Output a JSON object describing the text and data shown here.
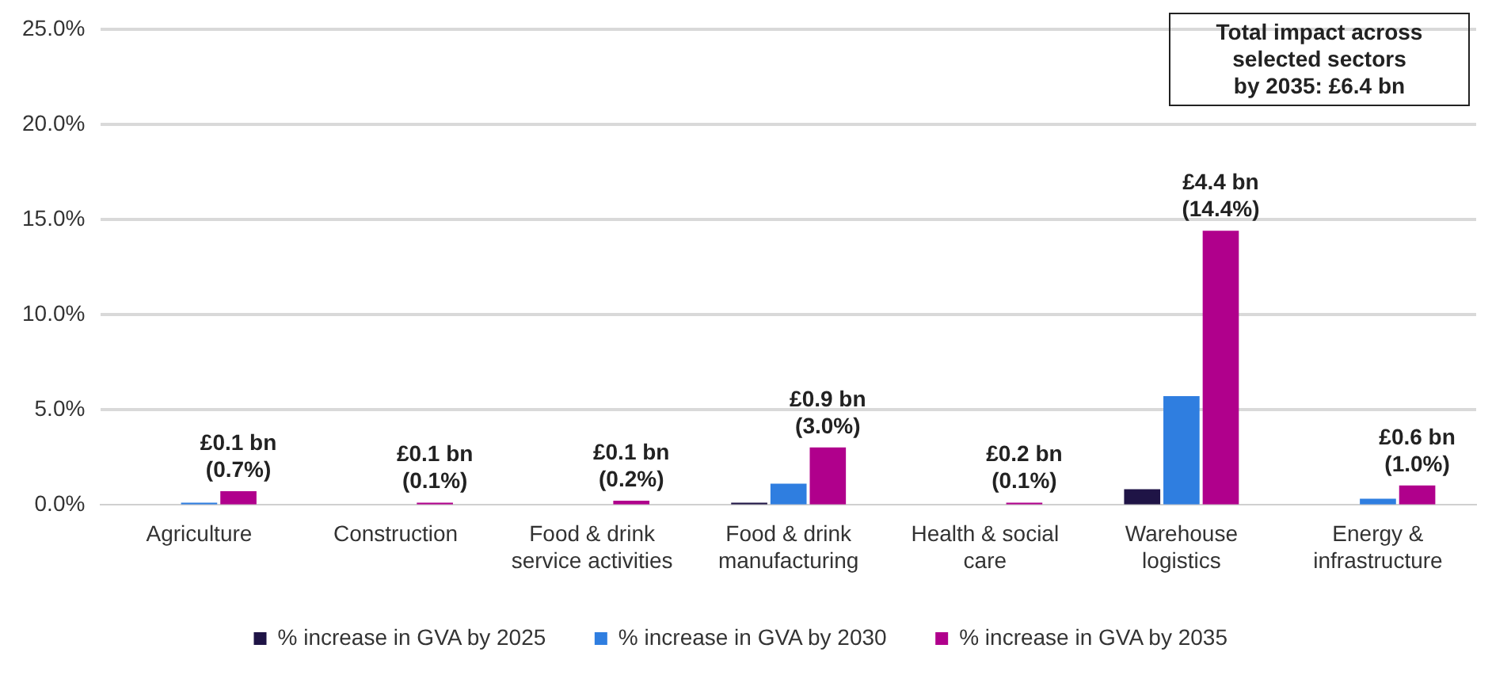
{
  "chart_data": {
    "type": "bar",
    "categories": [
      "Agriculture",
      "Construction",
      "Food & drink service activities",
      "Food & drink manufacturing",
      "Health & social care",
      "Warehouse logistics",
      "Energy & infrastructure"
    ],
    "series": [
      {
        "name": "% increase in GVA by 2025",
        "color": "#1f1446",
        "values": [
          0,
          0,
          0,
          0.1,
          0,
          0.8,
          0
        ]
      },
      {
        "name": "% increase in GVA by 2030",
        "color": "#2f7ee0",
        "values": [
          0.1,
          0,
          0,
          1.1,
          0,
          5.7,
          0.3
        ]
      },
      {
        "name": "% increase in GVA by 2035",
        "color": "#b0008c",
        "values": [
          0.7,
          0.1,
          0.2,
          3.0,
          0.1,
          14.4,
          1.0
        ],
        "value_labels": [
          "£0.1 bn\n(0.7%)",
          "£0.1 bn\n(0.1%)",
          "£0.1 bn\n(0.2%)",
          "£0.9 bn\n(3.0%)",
          "£0.2 bn\n(0.1%)",
          "£4.4 bn\n(14.4%)",
          "£0.6 bn\n(1.0%)"
        ]
      }
    ],
    "ylim": [
      0,
      25
    ],
    "yticks": [
      {
        "value": 0,
        "label": "0.0%"
      },
      {
        "value": 5,
        "label": "5.0%"
      },
      {
        "value": 10,
        "label": "10.0%"
      },
      {
        "value": 15,
        "label": "15.0%"
      },
      {
        "value": 20,
        "label": "20.0%"
      },
      {
        "value": 25,
        "label": "25.0%"
      }
    ],
    "grid": "y",
    "legend": "bottom",
    "annotations": [
      "Total impact across selected sectors by 2035: £6.4 bn"
    ]
  }
}
